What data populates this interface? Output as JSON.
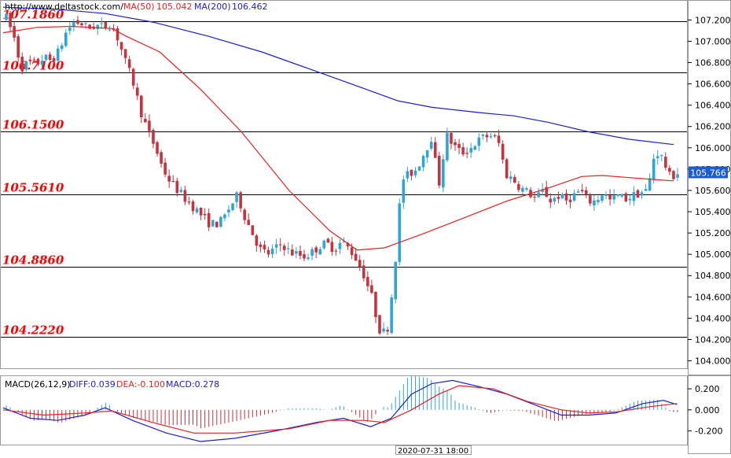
{
  "header": {
    "url": "http://www.deltastock.com/",
    "ma50_label": "MA(50)",
    "ma50_value": "105.042",
    "ma200_label": "MA(200)",
    "ma200_value": "106.462"
  },
  "macd_header": {
    "title": "MACD(26,12,9)",
    "diff": "DIFF:0.039",
    "dea": "DEA:-0.100",
    "macd": "MACD:0.278"
  },
  "time_label": "2020-07-31 18:00",
  "price_tag": "105.766",
  "colors": {
    "candle_up": "#2fa4d9",
    "candle_down": "#c8323c",
    "ma50": "#e82020",
    "ma200": "#1c1cdc",
    "level_text": "#ff0000"
  },
  "chart_data": {
    "type": "candlestick",
    "main": {
      "ylim": [
        103.93,
        107.38
      ],
      "y_ticks": [
        "104.000",
        "104.200",
        "104.400",
        "104.600",
        "104.800",
        "105.000",
        "105.200",
        "105.400",
        "105.600",
        "105.800",
        "106.000",
        "106.200",
        "106.400",
        "106.600",
        "106.800",
        "107.000",
        "107.200"
      ],
      "levels": [
        {
          "value": 107.186,
          "label": "107.1860"
        },
        {
          "value": 106.71,
          "label": "106.7100"
        },
        {
          "value": 106.15,
          "label": "106.1500"
        },
        {
          "value": 105.561,
          "label": "105.5610"
        },
        {
          "value": 104.886,
          "label": "104.8860"
        },
        {
          "value": 104.222,
          "label": "104.2220"
        }
      ],
      "close_path": [
        107.22,
        107.05,
        106.75,
        106.8,
        106.78,
        106.85,
        106.82,
        106.9,
        107.08,
        107.18,
        107.17,
        107.12,
        107.15,
        107.13,
        107.16,
        107.02,
        106.8,
        106.62,
        106.35,
        106.15,
        106.0,
        105.8,
        105.68,
        105.6,
        105.52,
        105.45,
        105.38,
        105.3,
        105.28,
        105.32,
        105.45,
        105.55,
        105.35,
        105.2,
        105.05,
        105.0,
        105.05,
        105.1,
        105.02,
        105.0,
        104.98,
        105.02,
        105.08,
        105.1,
        105.05,
        105.12,
        105.05,
        104.95,
        104.8,
        104.6,
        104.3,
        104.25,
        104.8,
        105.7,
        105.75,
        105.8,
        105.95,
        106.1,
        105.65,
        106.12,
        106.02,
        105.95,
        105.98,
        106.05,
        106.1,
        106.12,
        106.05,
        105.75,
        105.7,
        105.62,
        105.58,
        105.52,
        105.6,
        105.5,
        105.55,
        105.5,
        105.55,
        105.6,
        105.5,
        105.5,
        105.58,
        105.5,
        105.55,
        105.52,
        105.55,
        105.58,
        105.6,
        105.98,
        105.9,
        105.72,
        105.766
      ],
      "ma50": [
        [
          0,
          107.08
        ],
        [
          0.05,
          107.13
        ],
        [
          0.1,
          107.14
        ],
        [
          0.16,
          107.12
        ],
        [
          0.18,
          107.05
        ],
        [
          0.23,
          106.9
        ],
        [
          0.29,
          106.55
        ],
        [
          0.35,
          106.15
        ],
        [
          0.42,
          105.6
        ],
        [
          0.48,
          105.22
        ],
        [
          0.52,
          105.04
        ],
        [
          0.56,
          105.06
        ],
        [
          0.62,
          105.2
        ],
        [
          0.68,
          105.35
        ],
        [
          0.74,
          105.5
        ],
        [
          0.8,
          105.62
        ],
        [
          0.85,
          105.73
        ],
        [
          0.88,
          105.74
        ],
        [
          0.92,
          105.72
        ],
        [
          0.96,
          105.7
        ],
        [
          0.985,
          105.69
        ]
      ],
      "ma200": [
        [
          0,
          107.32
        ],
        [
          0.08,
          107.3
        ],
        [
          0.15,
          107.26
        ],
        [
          0.22,
          107.18
        ],
        [
          0.3,
          107.05
        ],
        [
          0.38,
          106.9
        ],
        [
          0.45,
          106.74
        ],
        [
          0.52,
          106.58
        ],
        [
          0.58,
          106.44
        ],
        [
          0.63,
          106.38
        ],
        [
          0.7,
          106.33
        ],
        [
          0.75,
          106.3
        ],
        [
          0.8,
          106.24
        ],
        [
          0.86,
          106.15
        ],
        [
          0.92,
          106.08
        ],
        [
          0.985,
          106.03
        ]
      ]
    },
    "macd": {
      "ylim": [
        -0.33,
        0.32
      ],
      "y_ticks": [
        "0.200",
        "0.000",
        "-0.200"
      ],
      "diff_path": [
        [
          0,
          0.02
        ],
        [
          0.04,
          -0.08
        ],
        [
          0.08,
          -0.1
        ],
        [
          0.12,
          -0.05
        ],
        [
          0.15,
          0.02
        ],
        [
          0.19,
          -0.1
        ],
        [
          0.24,
          -0.22
        ],
        [
          0.29,
          -0.3
        ],
        [
          0.34,
          -0.27
        ],
        [
          0.4,
          -0.2
        ],
        [
          0.46,
          -0.12
        ],
        [
          0.5,
          -0.08
        ],
        [
          0.54,
          -0.16
        ],
        [
          0.57,
          -0.08
        ],
        [
          0.6,
          0.15
        ],
        [
          0.63,
          0.25
        ],
        [
          0.66,
          0.28
        ],
        [
          0.7,
          0.22
        ],
        [
          0.74,
          0.15
        ],
        [
          0.78,
          0.05
        ],
        [
          0.82,
          -0.05
        ],
        [
          0.86,
          -0.05
        ],
        [
          0.9,
          -0.03
        ],
        [
          0.94,
          0.06
        ],
        [
          0.97,
          0.09
        ],
        [
          0.99,
          0.05
        ]
      ],
      "dea_path": [
        [
          0,
          0.0
        ],
        [
          0.06,
          -0.05
        ],
        [
          0.12,
          -0.03
        ],
        [
          0.16,
          -0.01
        ],
        [
          0.22,
          -0.12
        ],
        [
          0.28,
          -0.22
        ],
        [
          0.34,
          -0.22
        ],
        [
          0.42,
          -0.18
        ],
        [
          0.48,
          -0.1
        ],
        [
          0.53,
          -0.1
        ],
        [
          0.56,
          -0.12
        ],
        [
          0.6,
          0.0
        ],
        [
          0.64,
          0.15
        ],
        [
          0.67,
          0.23
        ],
        [
          0.72,
          0.2
        ],
        [
          0.77,
          0.08
        ],
        [
          0.82,
          0.0
        ],
        [
          0.86,
          -0.03
        ],
        [
          0.9,
          -0.02
        ],
        [
          0.95,
          0.03
        ],
        [
          0.99,
          0.06
        ]
      ]
    }
  }
}
